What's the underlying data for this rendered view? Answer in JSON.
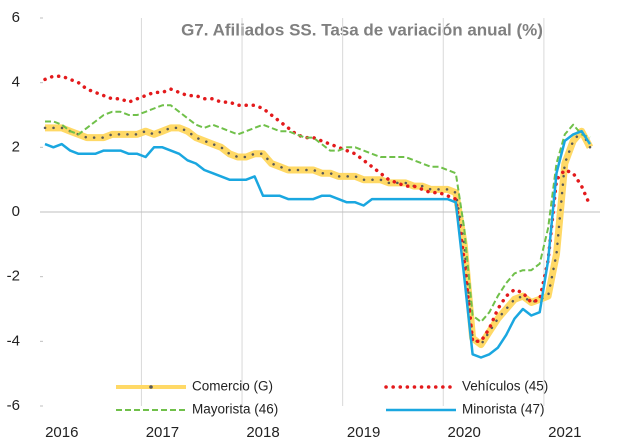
{
  "chart_data": {
    "type": "line",
    "title": "G7. Afiliados SS. Tasa de variación anual (%)",
    "categories": [
      null,
      null,
      "2016",
      null,
      null,
      null,
      null,
      null,
      null,
      null,
      null,
      null,
      null,
      null,
      "2017",
      null,
      null,
      null,
      null,
      null,
      null,
      null,
      null,
      null,
      null,
      null,
      "2018",
      null,
      null,
      null,
      null,
      null,
      null,
      null,
      null,
      null,
      null,
      null,
      "2019",
      null,
      null,
      null,
      null,
      null,
      null,
      null,
      null,
      null,
      null,
      null,
      "2020",
      null,
      null,
      null,
      null,
      null,
      null,
      null,
      null,
      null,
      null,
      null,
      "2021",
      null,
      null,
      null
    ],
    "series": [
      {
        "name": "Comercio (G)",
        "color": "#ffd966",
        "marker_color": "#595959",
        "style": "solid",
        "values": [
          2.6,
          2.6,
          2.6,
          2.5,
          2.4,
          2.3,
          2.3,
          2.3,
          2.4,
          2.4,
          2.4,
          2.4,
          2.5,
          2.4,
          2.5,
          2.6,
          2.6,
          2.5,
          2.3,
          2.2,
          2.1,
          2.0,
          1.8,
          1.7,
          1.7,
          1.8,
          1.8,
          1.5,
          1.4,
          1.3,
          1.3,
          1.3,
          1.3,
          1.2,
          1.2,
          1.1,
          1.1,
          1.1,
          1.0,
          1.0,
          1.0,
          0.9,
          0.9,
          0.9,
          0.8,
          0.8,
          0.7,
          0.7,
          0.7,
          0.6,
          -1.0,
          -3.9,
          -4.1,
          -3.7,
          -3.3,
          -3.0,
          -2.7,
          -2.6,
          -2.8,
          -2.7,
          -2.6,
          -1.3,
          1.5,
          2.2,
          2.5,
          2.0
        ]
      },
      {
        "name": "Vehículos (45)",
        "color": "#e31a1c",
        "style": "dotted",
        "values": [
          4.1,
          4.2,
          4.2,
          4.1,
          4.0,
          3.8,
          3.7,
          3.6,
          3.5,
          3.5,
          3.4,
          3.5,
          3.6,
          3.7,
          3.7,
          3.8,
          3.7,
          3.6,
          3.6,
          3.5,
          3.5,
          3.4,
          3.4,
          3.3,
          3.3,
          3.3,
          3.2,
          3.0,
          2.8,
          2.6,
          2.4,
          2.3,
          2.3,
          2.2,
          2.1,
          2.0,
          1.9,
          1.8,
          1.6,
          1.4,
          1.2,
          1.0,
          0.9,
          0.8,
          0.8,
          0.7,
          0.6,
          0.6,
          0.5,
          0.4,
          -1.5,
          -4.0,
          -4.0,
          -3.6,
          -3.0,
          -2.6,
          -2.4,
          -2.5,
          -2.8,
          -2.7,
          -1.5,
          1.0,
          1.3,
          1.2,
          0.8,
          0.2
        ]
      },
      {
        "name": "Mayorista (46)",
        "color": "#70c04a",
        "style": "dashed",
        "values": [
          2.8,
          2.8,
          2.7,
          2.5,
          2.4,
          2.6,
          2.8,
          3.0,
          3.1,
          3.1,
          3.0,
          3.0,
          3.1,
          3.2,
          3.3,
          3.3,
          3.1,
          2.9,
          2.7,
          2.6,
          2.7,
          2.6,
          2.5,
          2.4,
          2.5,
          2.6,
          2.7,
          2.6,
          2.5,
          2.5,
          2.4,
          2.3,
          2.3,
          2.1,
          1.9,
          1.9,
          2.0,
          2.0,
          1.9,
          1.8,
          1.7,
          1.7,
          1.7,
          1.7,
          1.6,
          1.5,
          1.4,
          1.4,
          1.3,
          1.2,
          -0.5,
          -3.2,
          -3.4,
          -3.1,
          -2.6,
          -2.2,
          -1.9,
          -1.8,
          -1.8,
          -1.6,
          -0.5,
          1.5,
          2.4,
          2.7,
          2.4,
          2.3
        ]
      },
      {
        "name": "Minorista (47)",
        "color": "#1aa7e0",
        "style": "solid",
        "values": [
          2.1,
          2.0,
          2.1,
          1.9,
          1.8,
          1.8,
          1.8,
          1.9,
          1.9,
          1.9,
          1.8,
          1.8,
          1.7,
          2.0,
          2.0,
          1.9,
          1.8,
          1.6,
          1.5,
          1.3,
          1.2,
          1.1,
          1.0,
          1.0,
          1.0,
          1.1,
          0.5,
          0.5,
          0.5,
          0.4,
          0.4,
          0.4,
          0.4,
          0.5,
          0.5,
          0.4,
          0.3,
          0.3,
          0.2,
          0.4,
          0.4,
          0.4,
          0.4,
          0.4,
          0.4,
          0.4,
          0.4,
          0.4,
          0.4,
          0.3,
          -2.0,
          -4.4,
          -4.5,
          -4.4,
          -4.2,
          -3.8,
          -3.3,
          -3.0,
          -3.2,
          -3.1,
          -1.5,
          1.2,
          2.2,
          2.4,
          2.5,
          2.1
        ]
      }
    ],
    "ylim": [
      -6,
      6
    ],
    "yticks": [
      -6,
      -4,
      -2,
      0,
      2,
      4,
      6
    ],
    "grid": true
  }
}
